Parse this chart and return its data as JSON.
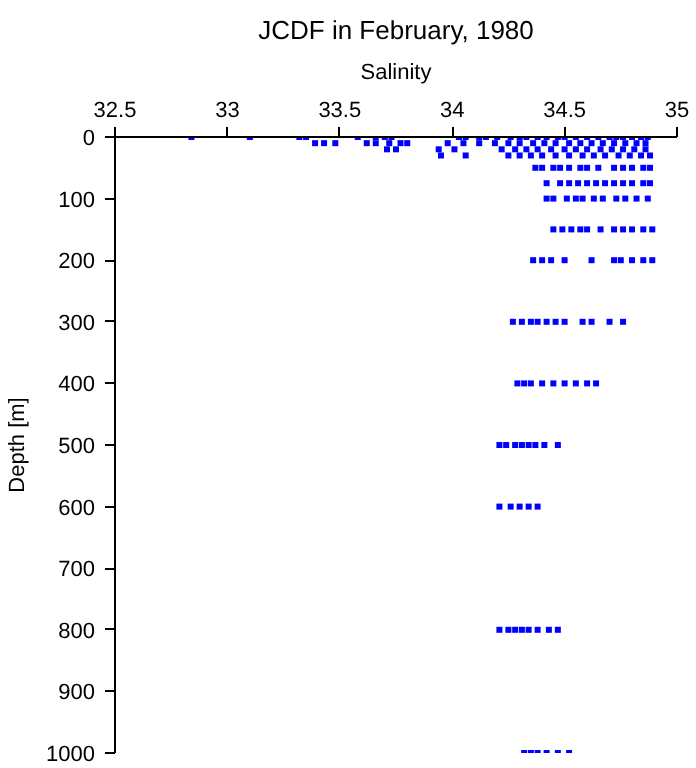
{
  "chart_data": {
    "type": "scatter",
    "title": "JCDF in February, 1980",
    "xlabel": "Salinity",
    "ylabel": "Depth [m]",
    "xlim": [
      32.5,
      35
    ],
    "xticks": [
      32.5,
      33,
      33.5,
      34,
      34.5,
      35
    ],
    "ylim": [
      1000,
      0
    ],
    "yticks": [
      0,
      100,
      200,
      300,
      400,
      500,
      600,
      700,
      800,
      900,
      1000
    ],
    "grid": false,
    "marker": "square",
    "series": [
      {
        "color": "#0000ff",
        "x": [
          32.84,
          33.1,
          33.32,
          33.35,
          33.58,
          33.66,
          33.7,
          33.73,
          34.03,
          34.06,
          34.12,
          34.15,
          34.2,
          34.26,
          34.3,
          34.33,
          34.38,
          34.42,
          34.47,
          34.5,
          34.55,
          34.6,
          34.65,
          34.7,
          34.73,
          34.76,
          34.8,
          34.84,
          34.87
        ],
        "values": [
          0,
          0,
          0,
          0,
          0,
          0,
          0,
          0,
          0,
          0,
          0,
          0,
          0,
          0,
          0,
          0,
          0,
          0,
          0,
          0,
          0,
          0,
          0,
          0,
          0,
          0,
          0,
          0,
          0
        ]
      },
      {
        "color": "#0000ff",
        "x": [
          33.39,
          33.43,
          33.48,
          33.62,
          33.66,
          33.72,
          33.77,
          33.8,
          33.98,
          34.05,
          34.12,
          34.19,
          34.25,
          34.3,
          34.36,
          34.41,
          34.46,
          34.52,
          34.57,
          34.62,
          34.67,
          34.72,
          34.77,
          34.82,
          34.86
        ],
        "values": [
          10,
          10,
          10,
          10,
          10,
          10,
          10,
          10,
          10,
          10,
          10,
          10,
          10,
          10,
          10,
          10,
          10,
          10,
          10,
          10,
          10,
          10,
          10,
          10,
          10
        ]
      },
      {
        "color": "#0000ff",
        "x": [
          33.71,
          33.75,
          33.94,
          34.01,
          34.22,
          34.28,
          34.33,
          34.38,
          34.44,
          34.5,
          34.55,
          34.6,
          34.66,
          34.71,
          34.76,
          34.81,
          34.86
        ],
        "values": [
          20,
          20,
          20,
          20,
          20,
          20,
          20,
          20,
          20,
          20,
          20,
          20,
          20,
          20,
          20,
          20,
          20
        ]
      },
      {
        "color": "#0000ff",
        "x": [
          33.95,
          34.06,
          34.25,
          34.3,
          34.35,
          34.4,
          34.46,
          34.52,
          34.58,
          34.63,
          34.68,
          34.74,
          34.79,
          34.84,
          34.88
        ],
        "values": [
          30,
          30,
          30,
          30,
          30,
          30,
          30,
          30,
          30,
          30,
          30,
          30,
          30,
          30,
          30
        ]
      },
      {
        "color": "#0000ff",
        "x": [
          34.37,
          34.4,
          34.45,
          34.48,
          34.52,
          34.57,
          34.6,
          34.65,
          34.72,
          34.76,
          34.8,
          34.85,
          34.88
        ],
        "values": [
          50,
          50,
          50,
          50,
          50,
          50,
          50,
          50,
          50,
          50,
          50,
          50,
          50
        ]
      },
      {
        "color": "#0000ff",
        "x": [
          34.42,
          34.48,
          34.52,
          34.56,
          34.6,
          34.64,
          34.68,
          34.72,
          34.76,
          34.8,
          34.85,
          34.88
        ],
        "values": [
          75,
          75,
          75,
          75,
          75,
          75,
          75,
          75,
          75,
          75,
          75,
          75
        ]
      },
      {
        "color": "#0000ff",
        "x": [
          34.42,
          34.45,
          34.51,
          34.55,
          34.58,
          34.63,
          34.67,
          34.73,
          34.77,
          34.82,
          34.87
        ],
        "values": [
          100,
          100,
          100,
          100,
          100,
          100,
          100,
          100,
          100,
          100,
          100
        ]
      },
      {
        "color": "#0000ff",
        "x": [
          34.45,
          34.49,
          34.53,
          34.57,
          34.6,
          34.66,
          34.72,
          34.76,
          34.8,
          34.85,
          34.89
        ],
        "values": [
          150,
          150,
          150,
          150,
          150,
          150,
          150,
          150,
          150,
          150,
          150
        ]
      },
      {
        "color": "#0000ff",
        "x": [
          34.36,
          34.4,
          34.44,
          34.5,
          34.62,
          34.72,
          34.75,
          34.8,
          34.85,
          34.89
        ],
        "values": [
          200,
          200,
          200,
          200,
          200,
          200,
          200,
          200,
          200,
          200
        ]
      },
      {
        "color": "#0000ff",
        "x": [
          34.27,
          34.31,
          34.35,
          34.38,
          34.42,
          34.46,
          34.5,
          34.58,
          34.62,
          34.7,
          34.76
        ],
        "values": [
          300,
          300,
          300,
          300,
          300,
          300,
          300,
          300,
          300,
          300,
          300
        ]
      },
      {
        "color": "#0000ff",
        "x": [
          34.29,
          34.32,
          34.35,
          34.4,
          34.45,
          34.5,
          34.55,
          34.6,
          34.64
        ],
        "values": [
          400,
          400,
          400,
          400,
          400,
          400,
          400,
          400,
          400
        ]
      },
      {
        "color": "#0000ff",
        "x": [
          34.21,
          34.24,
          34.28,
          34.31,
          34.34,
          34.37,
          34.41,
          34.47
        ],
        "values": [
          500,
          500,
          500,
          500,
          500,
          500,
          500,
          500
        ]
      },
      {
        "color": "#0000ff",
        "x": [
          34.21,
          34.26,
          34.3,
          34.34,
          34.38
        ],
        "values": [
          600,
          600,
          600,
          600,
          600
        ]
      },
      {
        "color": "#0000ff",
        "x": [
          34.21,
          34.25,
          34.28,
          34.31,
          34.34,
          34.38,
          34.43,
          34.47
        ],
        "values": [
          800,
          800,
          800,
          800,
          800,
          800,
          800,
          800
        ]
      },
      {
        "color": "#0000ff",
        "x": [
          34.32,
          34.35,
          34.38,
          34.42,
          34.47,
          34.52
        ],
        "values": [
          1000,
          1000,
          1000,
          1000,
          1000,
          1000
        ]
      }
    ]
  }
}
